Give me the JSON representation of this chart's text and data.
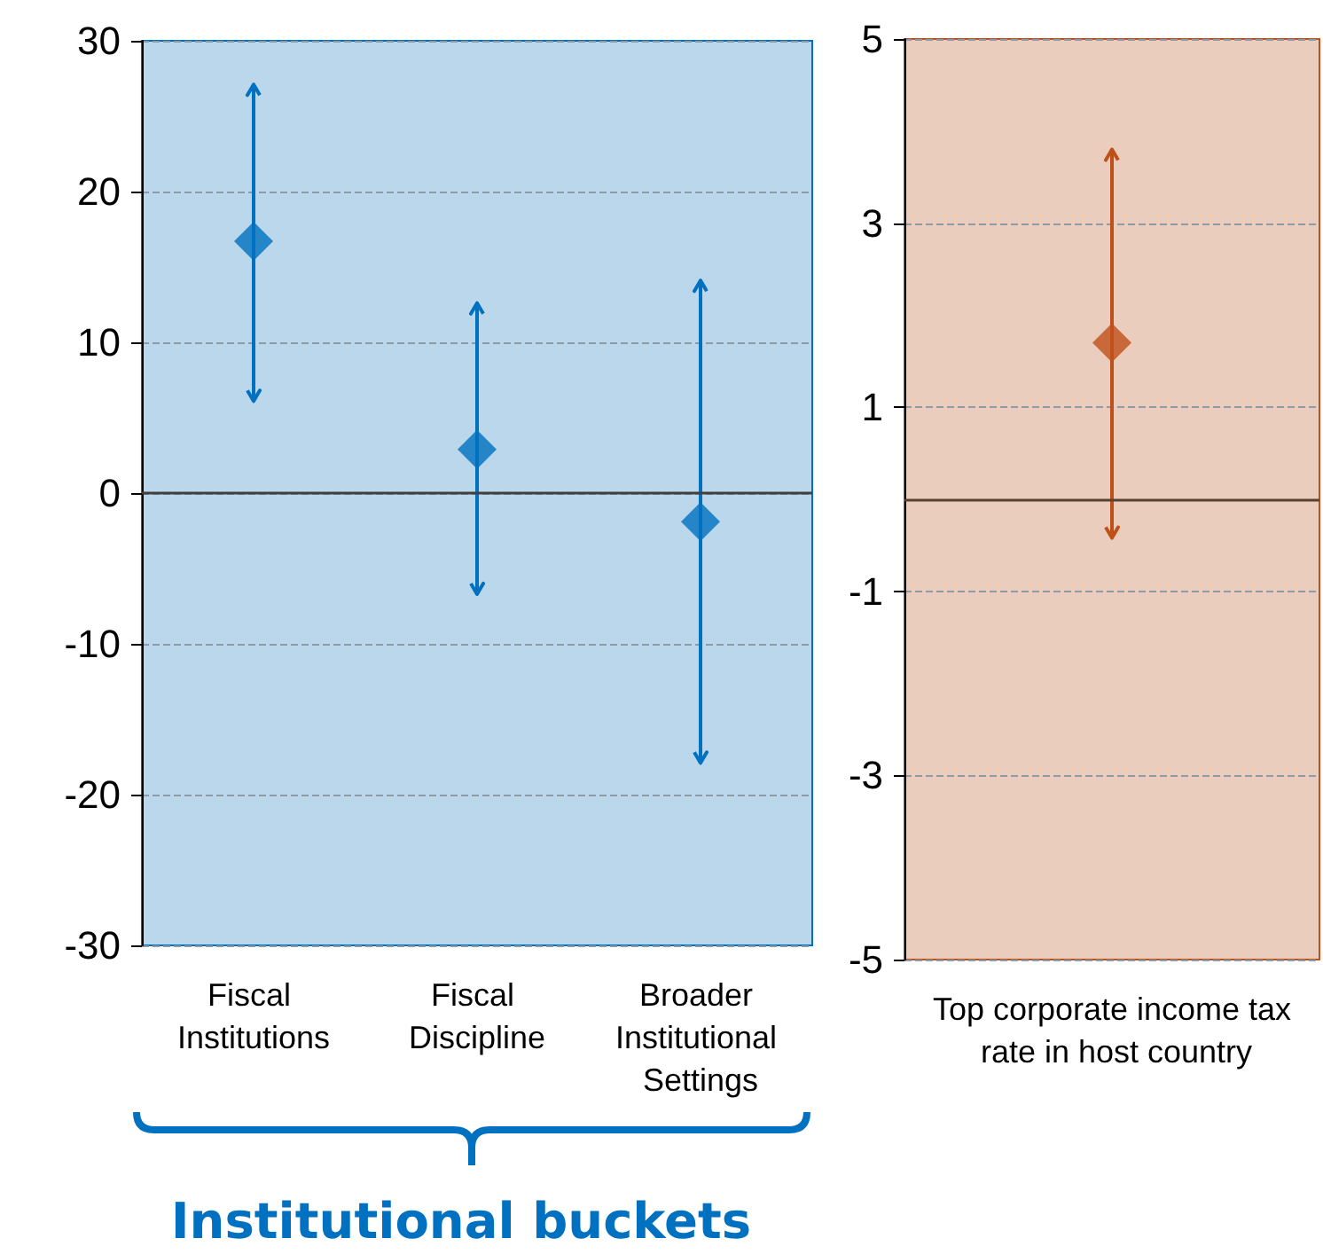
{
  "chart_data": [
    {
      "type": "scatter",
      "categories": [
        "Fiscal Institutions",
        "Fiscal Discipline",
        "Broader Institutional Settings"
      ],
      "series": [
        {
          "color": "#0070c0",
          "values": [
            16.7,
            2.9,
            -1.9
          ],
          "errors": [
            [
              6.1,
              27.1
            ],
            [
              -6.7,
              12.6
            ],
            [
              -17.9,
              14.1
            ]
          ]
        }
      ],
      "ylim": [
        -30,
        30
      ],
      "yticks": [
        -30,
        -20,
        -10,
        0,
        10,
        20,
        30
      ],
      "grid": "y",
      "marker": "diamond",
      "ref_lines": [
        {
          "axis": "y",
          "value": 0,
          "color": "#404040"
        }
      ],
      "bands": [
        {
          "axis": "y",
          "from": -30,
          "to": 30,
          "color": "#bbd7ec"
        }
      ],
      "annotations": [
        "Institutional buckets"
      ]
    },
    {
      "type": "scatter",
      "categories": [
        "Top corporate income tax rate in host country"
      ],
      "series": [
        {
          "color": "#c0501a",
          "values": [
            1.7
          ],
          "errors": [
            [
              -0.42,
              3.8
            ]
          ]
        }
      ],
      "ylim": [
        -5,
        5
      ],
      "yticks": [
        -5,
        -3,
        -1,
        1,
        3,
        5
      ],
      "grid": "y",
      "marker": "diamond",
      "ref_lines": [
        {
          "axis": "y",
          "value": 0,
          "color": "#5a4030"
        }
      ],
      "bands": [
        {
          "axis": "y",
          "from": -5,
          "to": 5,
          "color": "#eacdbd"
        }
      ]
    }
  ]
}
